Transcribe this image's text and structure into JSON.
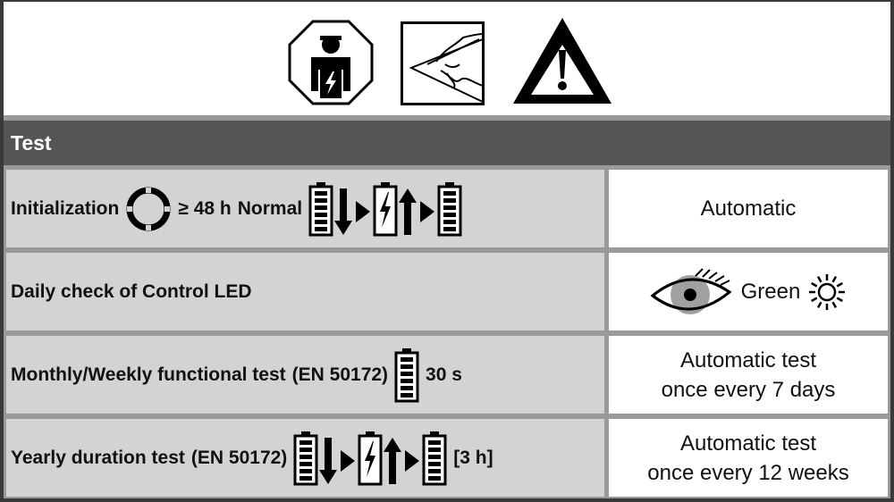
{
  "header": {
    "title": "Test"
  },
  "symbols": [
    "qualified-electrician-icon",
    "read-instructions-icon",
    "warning-icon"
  ],
  "rows": [
    {
      "label": "Initialization",
      "duration": "≥ 48 h",
      "mode": "Normal",
      "result": "Automatic"
    },
    {
      "label": "Daily check of Control LED",
      "result": "Green"
    },
    {
      "label": "Monthly/Weekly functional test",
      "standard": "(EN 50172)",
      "duration": "30 s",
      "result_line1": "Automatic test",
      "result_line2": "once every 7 days"
    },
    {
      "label": "Yearly duration test",
      "standard": "(EN 50172)",
      "duration": "[3 h]",
      "result_line1": "Automatic test",
      "result_line2": "once every 12 weeks"
    }
  ],
  "colors": {
    "header_bg": "#555555",
    "cell_bg": "#d3d3d3",
    "eye_iris": "#a0a0a0"
  }
}
